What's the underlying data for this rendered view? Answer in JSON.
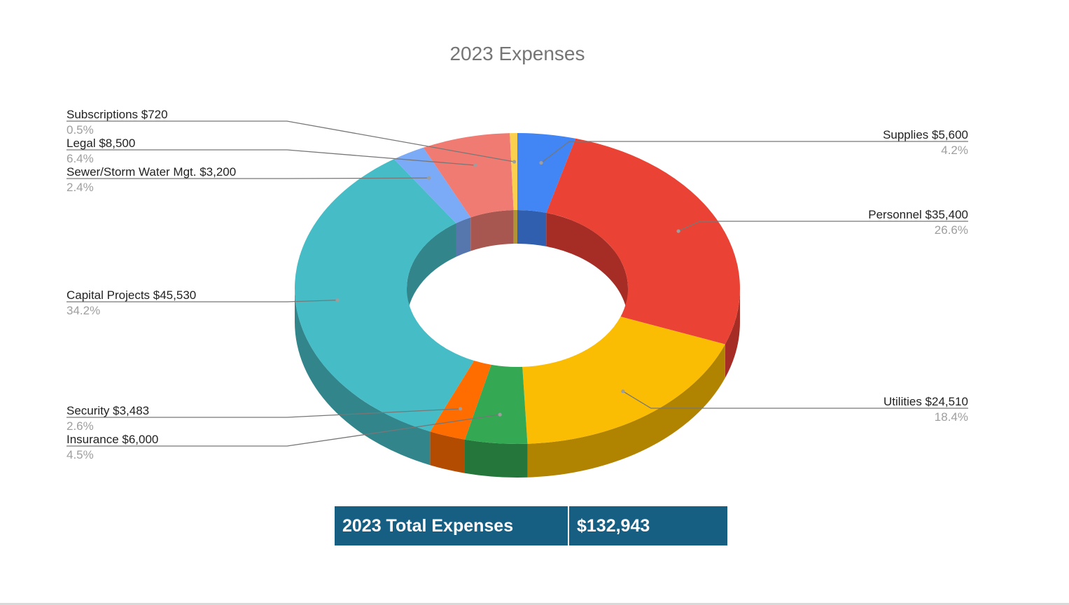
{
  "chart_data": {
    "type": "pie",
    "style": "3d-donut",
    "title": "2023 Expenses",
    "slices": [
      {
        "label": "Supplies",
        "value_text": "$5,600",
        "value": 5600,
        "percent_text": "4.2%",
        "color": "#4285f4",
        "side_color": "#2f5fae"
      },
      {
        "label": "Personnel",
        "value_text": "$35,400",
        "value": 35400,
        "percent_text": "26.6%",
        "color": "#ea4335",
        "side_color": "#a52d25"
      },
      {
        "label": "Utilities",
        "value_text": "$24,510",
        "value": 24510,
        "percent_text": "18.4%",
        "color": "#fbbc04",
        "side_color": "#b08400"
      },
      {
        "label": "Insurance",
        "value_text": "$6,000",
        "value": 6000,
        "percent_text": "4.5%",
        "color": "#34a853",
        "side_color": "#24763a"
      },
      {
        "label": "Security",
        "value_text": "$3,483",
        "value": 3483,
        "percent_text": "2.6%",
        "color": "#ff6d01",
        "side_color": "#b34c00"
      },
      {
        "label": "Capital Projects",
        "value_text": "$45,530",
        "value": 45530,
        "percent_text": "34.2%",
        "color": "#46bdc6",
        "side_color": "#31858b"
      },
      {
        "label": "Sewer/Storm Water Mgt.",
        "value_text": "$3,200",
        "value": 3200,
        "percent_text": "2.4%",
        "color": "#7baaf7",
        "side_color": "#5677ad"
      },
      {
        "label": "Legal",
        "value_text": "$8,500",
        "value": 8500,
        "percent_text": "6.4%",
        "color": "#f07b72",
        "side_color": "#a85650"
      },
      {
        "label": "Subscriptions",
        "value_text": "$720",
        "value": 720,
        "percent_text": "0.5%",
        "color": "#fcd04f",
        "side_color": "#b09237"
      }
    ],
    "legend": "none"
  },
  "total": {
    "label": "2023 Total Expenses",
    "value": "$132,943",
    "color": "#175f82"
  }
}
